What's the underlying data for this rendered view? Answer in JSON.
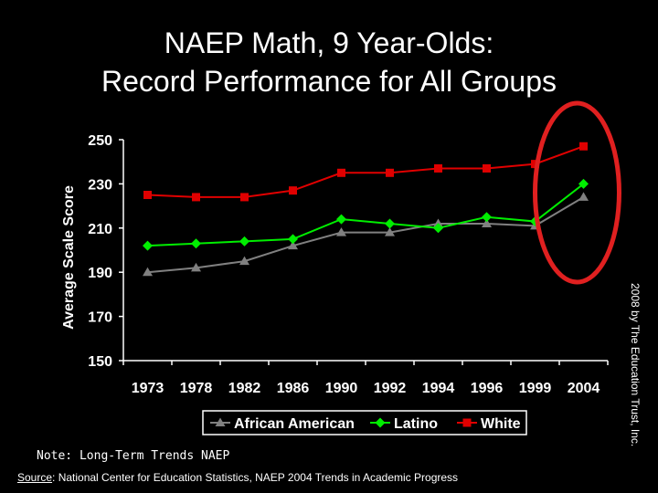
{
  "title_line1": "NAEP Math, 9 Year-Olds:",
  "title_line2": "Record Performance for All Groups",
  "side_credit": "2008 by The Education Trust, Inc.",
  "note": "Note: Long-Term Trends NAEP",
  "source_label": "Source",
  "source_text": ": National Center for Education Statistics, NAEP 2004 Trends in Academic Progress",
  "highlight_color": "#e02020",
  "chart_data": {
    "type": "line",
    "categories": [
      "1973",
      "1978",
      "1982",
      "1986",
      "1990",
      "1992",
      "1994",
      "1996",
      "1999",
      "2004"
    ],
    "ylabel": "Average Scale Score",
    "xlabel": "",
    "ylim": [
      150,
      250
    ],
    "yticks": [
      150,
      170,
      190,
      210,
      230,
      250
    ],
    "grid": false,
    "legend_position": "bottom",
    "series": [
      {
        "name": "African American",
        "color": "#808080",
        "marker": "triangle",
        "values": [
          190,
          192,
          195,
          202,
          208,
          208,
          212,
          212,
          211,
          224
        ]
      },
      {
        "name": "Latino",
        "color": "#00ee00",
        "marker": "diamond",
        "values": [
          202,
          203,
          204,
          205,
          214,
          212,
          210,
          215,
          213,
          230
        ]
      },
      {
        "name": "White",
        "color": "#e00000",
        "marker": "square",
        "values": [
          225,
          224,
          224,
          227,
          235,
          235,
          237,
          237,
          239,
          247
        ]
      }
    ]
  }
}
